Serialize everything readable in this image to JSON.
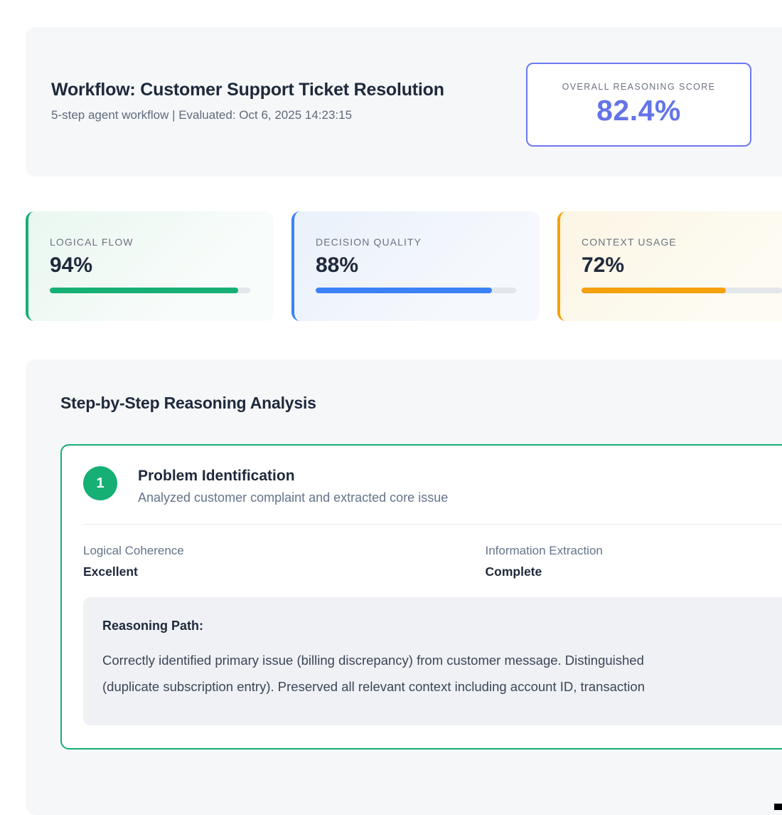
{
  "header": {
    "title": "Workflow: Customer Support Ticket Resolution",
    "subtitle": "5-step agent workflow | Evaluated: Oct 6, 2025 14:23:15",
    "score_label": "OVERALL REASONING SCORE",
    "score_value": "82.4%",
    "score_color": "#6474e8",
    "score_border_color": "#6b79ef"
  },
  "metrics": [
    {
      "label": "LOGICAL FLOW",
      "value": "94%",
      "color": "#16af74"
    },
    {
      "label": "DECISION QUALITY",
      "value": "88%",
      "color": "#3b82f6"
    },
    {
      "label": "CONTEXT USAGE",
      "value": "72%",
      "color": "#f5a00d"
    }
  ],
  "analysis": {
    "title": "Step-by-Step Reasoning Analysis",
    "steps": [
      {
        "number": "1",
        "name": "Problem Identification",
        "description": "Analyzed customer complaint and extracted core issue",
        "accent_color": "#16af74",
        "metrics": [
          {
            "label": "Logical Coherence",
            "value": "Excellent"
          },
          {
            "label": "Information Extraction",
            "value": "Complete"
          }
        ],
        "reasoning_label": "Reasoning Path:",
        "reasoning_lines": [
          "Correctly identified primary issue (billing discrepancy) from customer message. Distinguished",
          "(duplicate subscription entry). Preserved all relevant context including account ID, transaction"
        ]
      }
    ]
  }
}
